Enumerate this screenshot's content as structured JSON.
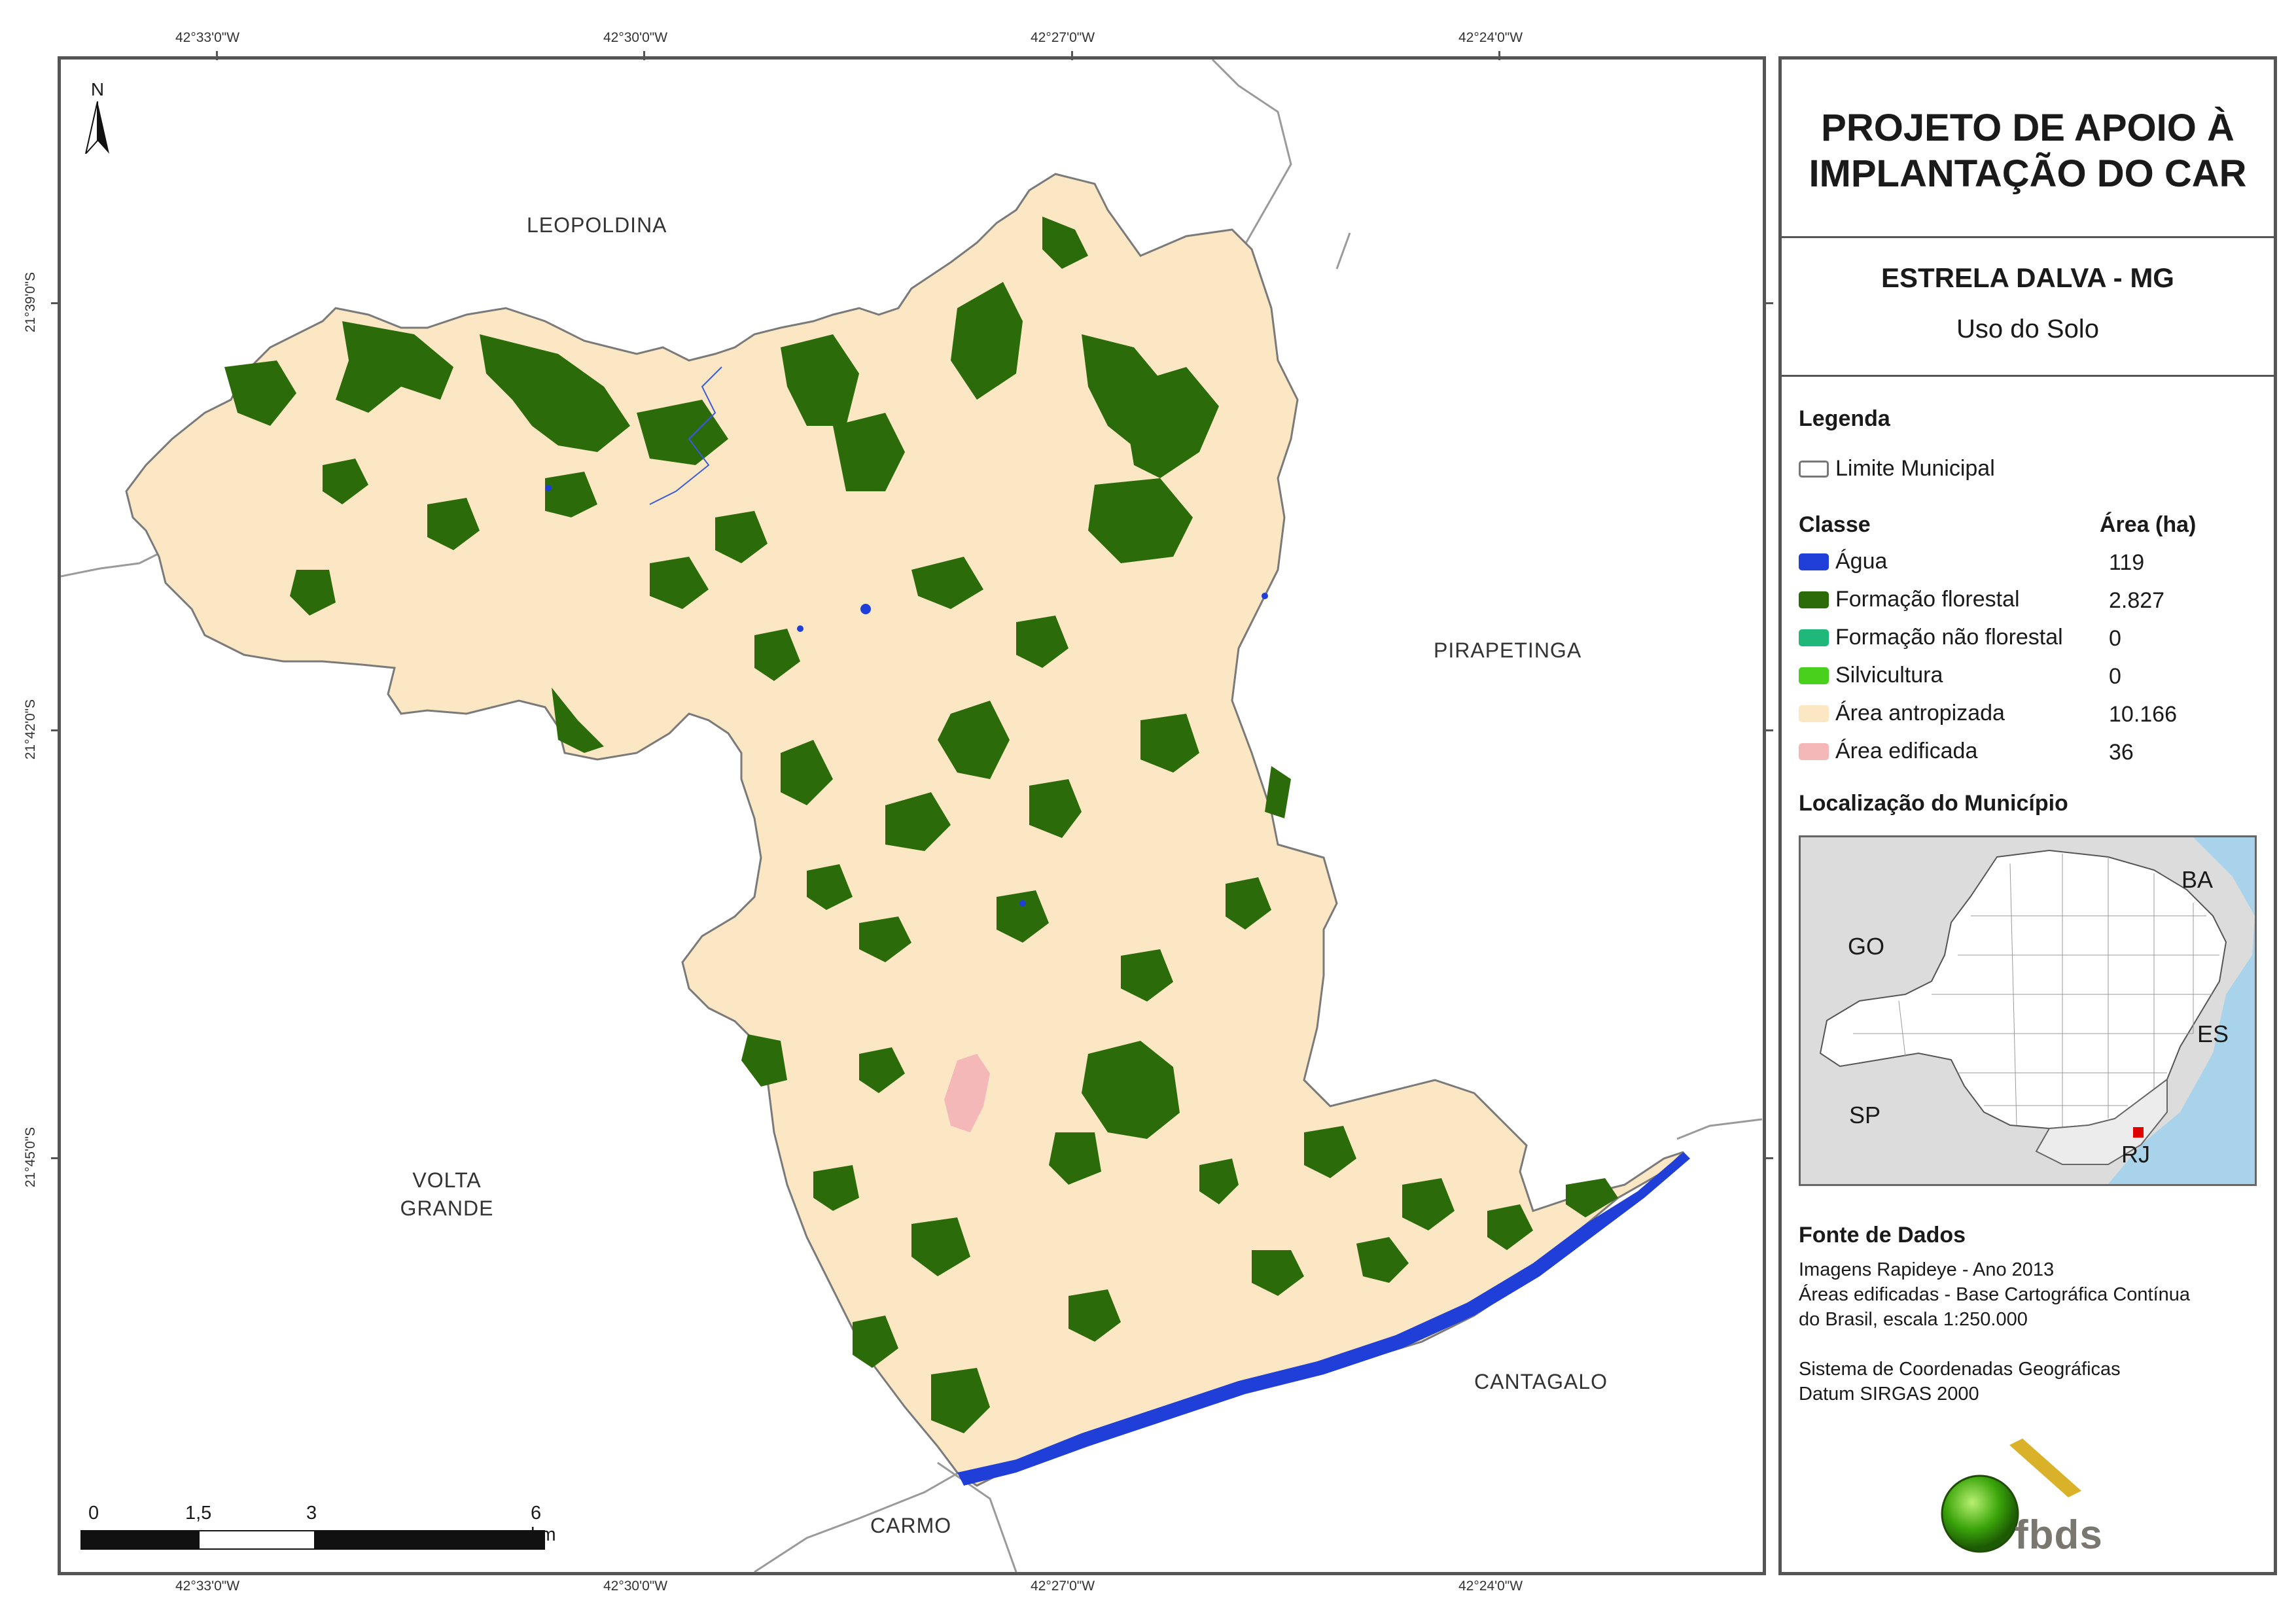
{
  "header": {
    "title_line1": "PROJETO DE APOIO À",
    "title_line2": "IMPLANTAÇÃO DO CAR",
    "municipality": "ESTRELA DALVA - MG",
    "subtitle": "Uso do Solo"
  },
  "map": {
    "north_label": "N",
    "top_lons": [
      "42°33'0\"W",
      "42°30'0\"W",
      "42°27'0\"W",
      "42°24'0\"W"
    ],
    "bottom_lons": [
      "42°33'0\"W",
      "42°30'0\"W",
      "42°27'0\"W",
      "42°24'0\"W"
    ],
    "left_lats": [
      "21°39'0\"S",
      "21°42'0\"S",
      "21°45'0\"S"
    ],
    "neighbors": {
      "leopoldina": "LEOPOLDINA",
      "pirapetinga": "PIRAPETINGA",
      "volta_grande_1": "VOLTA",
      "volta_grande_2": "GRANDE",
      "cantagalo": "CANTAGALO",
      "carmo": "CARMO"
    },
    "scale_labels": [
      "0",
      "1,5",
      "3",
      "6 km"
    ],
    "colors": {
      "agua": "#1f3fd8",
      "florestal": "#2b6b0a",
      "nao_florestal": "#1fb87a",
      "silvicultura": "#48d01c",
      "antropizada": "#fbe7c4",
      "edificada": "#f4b8b8"
    }
  },
  "legend": {
    "heading": "Legenda",
    "boundary_label": "Limite Municipal",
    "class_heading": "Classe",
    "area_heading": "Área (ha)",
    "rows": [
      {
        "label": "Água",
        "area": "119",
        "color": "#1f3fd8"
      },
      {
        "label": "Formação florestal",
        "area": "2.827",
        "color": "#2b6b0a"
      },
      {
        "label": "Formação não florestal",
        "area": "0",
        "color": "#1fb87a"
      },
      {
        "label": "Silvicultura",
        "area": "0",
        "color": "#48d01c"
      },
      {
        "label": "Área antropizada",
        "area": "10.166",
        "color": "#fbe7c4"
      },
      {
        "label": "Área edificada",
        "area": "36",
        "color": "#f4b8b8"
      }
    ]
  },
  "locator": {
    "heading": "Localização do Município",
    "labels": {
      "ba": "BA",
      "go": "GO",
      "es": "ES",
      "sp": "SP",
      "rj": "RJ"
    }
  },
  "sources": {
    "heading": "Fonte de Dados",
    "line1": "Imagens Rapideye - Ano 2013",
    "line2": "Áreas edificadas - Base Cartográfica Contínua",
    "line3": "do Brasil, escala 1:250.000",
    "line4": "Sistema de Coordenadas Geográficas",
    "line5": "Datum SIRGAS 2000"
  },
  "logo": {
    "text": "fbds"
  }
}
